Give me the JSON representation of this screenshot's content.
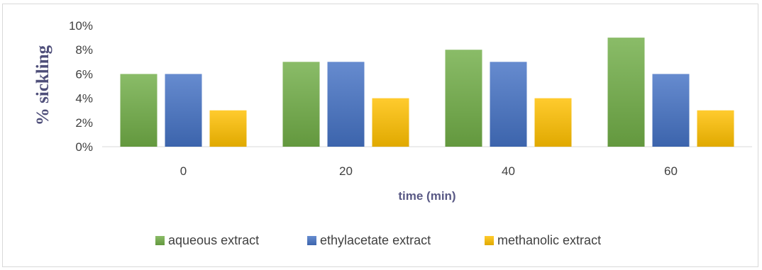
{
  "chart_data": {
    "type": "bar",
    "categories": [
      "0",
      "20",
      "40",
      "60"
    ],
    "series": [
      {
        "name": "aqueous extract",
        "values": [
          6,
          7,
          8,
          9
        ],
        "color": "#70ad47"
      },
      {
        "name": "ethylacetate extract",
        "values": [
          6,
          7,
          7,
          6
        ],
        "color": "#4472c4"
      },
      {
        "name": "methanolic extract",
        "values": [
          3,
          4,
          4,
          3
        ],
        "color": "#ffc000"
      }
    ],
    "title": "",
    "xlabel": "time (min)",
    "ylabel": "% sickling",
    "ylim": [
      0,
      10
    ],
    "yticks": [
      0,
      2,
      4,
      6,
      8,
      10
    ],
    "ytick_suffix": "%",
    "grid": false,
    "legend_position": "bottom"
  }
}
